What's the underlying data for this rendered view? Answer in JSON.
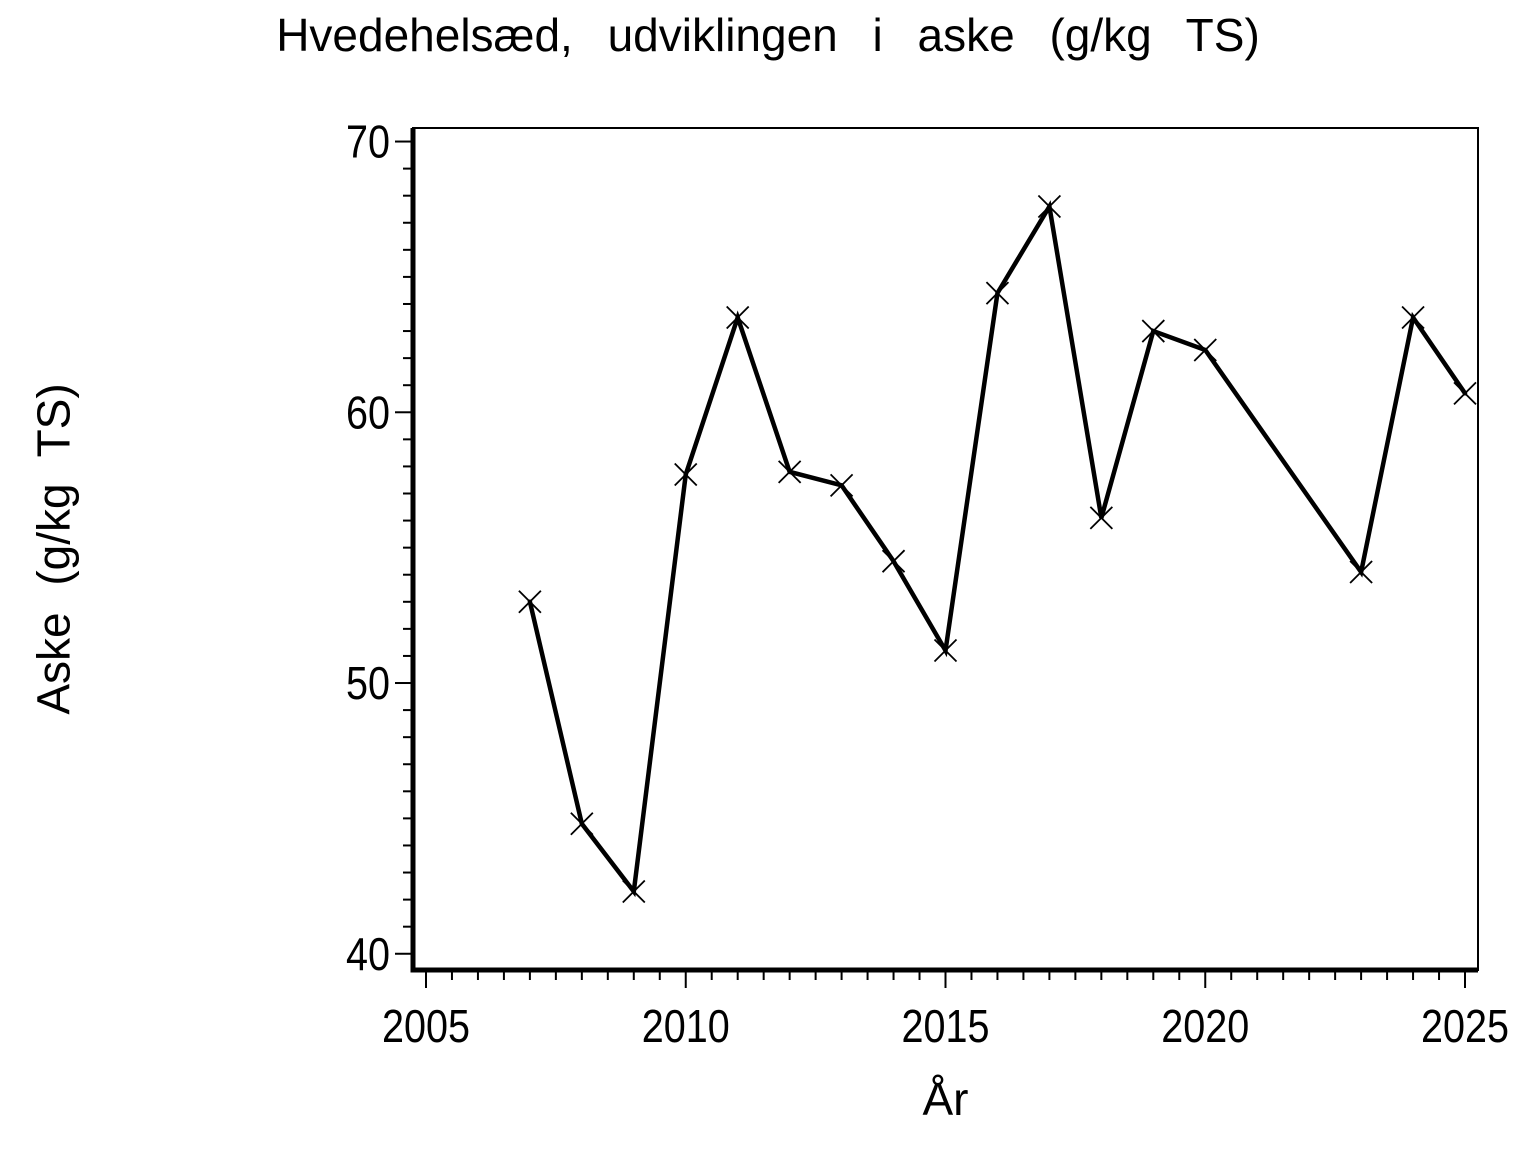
{
  "page": {
    "background": "#ffffff",
    "foreground": "#000000"
  },
  "chart_data": {
    "type": "line",
    "title": "Hvedehelsæd, udviklingen i aske (g/kg TS)",
    "xlabel": "År",
    "ylabel": "Aske (g/kg TS)",
    "series": [
      {
        "x": [
          2007,
          2008,
          2009,
          2010,
          2011,
          2012,
          2013,
          2014,
          2015,
          2016,
          2017,
          2018,
          2019,
          2020,
          2023,
          2024,
          2025
        ],
        "y": [
          53.0,
          44.8,
          42.3,
          57.7,
          63.5,
          57.8,
          57.3,
          54.5,
          51.2,
          64.4,
          67.6,
          56.1,
          63.0,
          62.3,
          54.1,
          63.5,
          60.7
        ]
      }
    ],
    "missing_years": [
      2021,
      2022
    ],
    "x_ticks_major": [
      2005,
      2010,
      2015,
      2020,
      2025
    ],
    "x_tick_labels": [
      "2005",
      "2010",
      "2015",
      "2020",
      "2025"
    ],
    "x_minor_interval": 0.5,
    "y_ticks_major": [
      40,
      50,
      60,
      70
    ],
    "y_tick_labels": [
      "40",
      "50",
      "60",
      "70"
    ],
    "y_minor_interval": 1,
    "xlim": [
      2004.75,
      2025.25
    ],
    "ylim": [
      39.4,
      70.5
    ],
    "marker": "x",
    "line_color": "#000000",
    "background_color": "#ffffff",
    "grid": false,
    "legend": null
  }
}
